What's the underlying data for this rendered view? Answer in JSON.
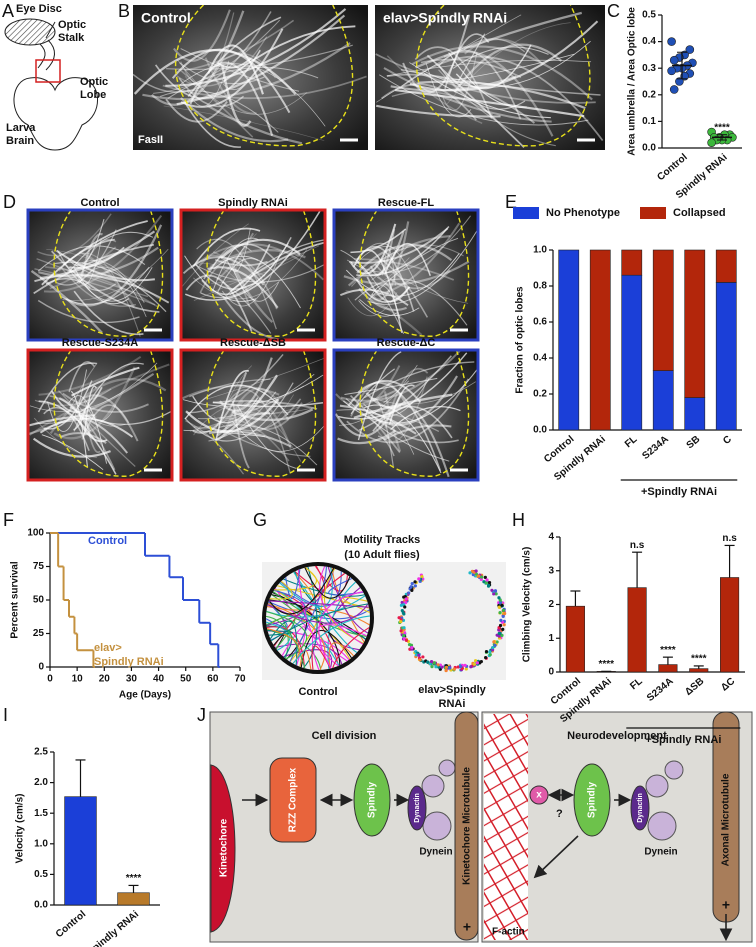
{
  "panel_a": {
    "letter": "A",
    "eye_disc": "Eye Disc",
    "optic_stalk": [
      "Optic",
      "Stalk"
    ],
    "optic_lobe": [
      "Optic",
      "Lobe"
    ],
    "larva_brain": [
      "Larva",
      "Brain"
    ]
  },
  "panel_b": {
    "letter": "B",
    "images": [
      {
        "title": "Control",
        "stain": "FasII"
      },
      {
        "title": "elav>Spindly RNAi"
      }
    ]
  },
  "panel_d": {
    "letter": "D",
    "images": [
      {
        "title": "Control",
        "frame": "#2a3fbf"
      },
      {
        "title": "Spindly RNAi",
        "frame": "#d42020"
      },
      {
        "title": "Rescue-FL",
        "frame": "#2a3fbf"
      },
      {
        "title": "Rescue-S234A",
        "frame": "#d42020"
      },
      {
        "title": "Rescue-ΔSB",
        "frame": "#d42020"
      },
      {
        "title": "Rescue-ΔC",
        "frame": "#2a3fbf"
      }
    ]
  },
  "panel_g": {
    "letter": "G",
    "title": [
      "Motility Tracks",
      "(10 Adult flies)"
    ],
    "control_label": "Control",
    "rnai_label": [
      "elav>Spindly",
      "RNAi"
    ]
  },
  "panel_j": {
    "letter": "J",
    "left": {
      "title": "Cell division",
      "kinetochore": "Kinetochore",
      "rzz": "RZZ Complex",
      "spindly": "Spindly",
      "dynactin": "Dynactin",
      "dynein": "Dynein",
      "microtubule": "Kinetochore Microtubule",
      "plus": "+"
    },
    "right": {
      "title": "Neurodevelopment",
      "x": "x",
      "question": "?",
      "spindly": "Spindly",
      "dynactin": "Dynactin",
      "dynein": "Dynein",
      "microtubule": "Axonal Microtubule",
      "plus": "+",
      "factin": "F-actin"
    }
  },
  "chart_data": [
    {
      "panel": "C",
      "type": "scatter-dot",
      "categories": [
        "Control",
        "Spindly RNAi"
      ],
      "colors": [
        "#1f4fb5",
        "#3cb83c"
      ],
      "values": [
        [
          0.4,
          0.37,
          0.35,
          0.34,
          0.33,
          0.32,
          0.31,
          0.3,
          0.3,
          0.29,
          0.28,
          0.27,
          0.25,
          0.22
        ],
        [
          0.06,
          0.05,
          0.05,
          0.04,
          0.04,
          0.04,
          0.03,
          0.03,
          0.03,
          0.02
        ]
      ],
      "means": [
        0.31,
        0.04
      ],
      "errors": [
        0.05,
        0.01
      ],
      "annotations": [
        null,
        "****"
      ],
      "ylabel": "Area umbrella / Area Optic lobe",
      "ylim": [
        0,
        0.5
      ],
      "yticks": [
        {
          "value": 0,
          "label": "0.0"
        },
        0.1,
        0.2,
        0.3,
        0.4,
        0.5
      ]
    },
    {
      "panel": "E",
      "type": "stacked-bar",
      "categories": [
        "Control",
        "Spindly RNAi",
        "FL",
        "S234A",
        "SB",
        "C"
      ],
      "group_label": "+Spindly RNAi",
      "series": [
        {
          "name": "No Phenotype",
          "color": "#1b3fd8",
          "values": [
            1,
            0,
            0.86,
            0.33,
            0.18,
            0.82
          ]
        },
        {
          "name": "Collapsed",
          "color": "#b3260b",
          "values": [
            0,
            1,
            0.14,
            0.67,
            0.82,
            0.18
          ]
        }
      ],
      "legend": "top",
      "ylabel": "Fraction of optic lobes",
      "ylim": [
        0,
        1
      ],
      "yticks": [
        {
          "value": 0,
          "label": "0.0"
        },
        0.2,
        0.4,
        0.6,
        0.8,
        {
          "value": 1,
          "label": "1.0"
        }
      ]
    },
    {
      "panel": "F",
      "type": "step",
      "xlabel": "Age (Days)",
      "ylabel": "Percent survival",
      "xlim": [
        0,
        70
      ],
      "xticks": [
        0,
        10,
        20,
        30,
        40,
        50,
        60,
        70
      ],
      "ylim": [
        0,
        100
      ],
      "yticks": [
        0,
        25,
        50,
        75,
        100
      ],
      "series": [
        {
          "label": [
            "Control"
          ],
          "color": "#2d4fd6",
          "x": [
            0,
            35,
            44,
            49,
            55,
            59,
            62
          ],
          "values": [
            100,
            83,
            67,
            50,
            33,
            17,
            0
          ]
        },
        {
          "label": [
            "elav>",
            "Spindly RNAi"
          ],
          "color": "#c4913f",
          "x": [
            0,
            3,
            5,
            7,
            9,
            10,
            16
          ],
          "values": [
            100,
            75,
            50,
            37.5,
            25,
            12.5,
            0
          ]
        }
      ]
    },
    {
      "panel": "H",
      "type": "bar-error",
      "categories": [
        "Control",
        "Spindly RNAi",
        "FL",
        "S234A",
        "ΔSB",
        "ΔC"
      ],
      "group_label": "+Spindly RNAi",
      "color": "#b3260b",
      "values": [
        1.95,
        0.02,
        2.5,
        0.22,
        0.1,
        2.8
      ],
      "errors": [
        0.45,
        0,
        1.05,
        0.22,
        0.08,
        0.95
      ],
      "annotations": [
        null,
        "****",
        "n.s",
        "****",
        "****",
        "n.s"
      ],
      "ylabel": "Climbing Velocity (cm/s)",
      "ylim": [
        0,
        4
      ],
      "yticks": [
        0,
        1,
        2,
        3,
        4
      ]
    },
    {
      "panel": "I",
      "type": "bar-error",
      "categories": [
        "Control",
        "Spindly RNAi"
      ],
      "colors": [
        "#1b3fd8",
        "#b87a2a"
      ],
      "values": [
        1.77,
        0.2
      ],
      "errors": [
        0.6,
        0.12
      ],
      "annotations": [
        null,
        "****"
      ],
      "ylabel": "Velocity (cm/s)",
      "ylim": [
        0,
        2.5
      ],
      "yticks": [
        {
          "value": 0,
          "label": "0.0"
        },
        0.5,
        {
          "value": 1,
          "label": "1.0"
        },
        1.5,
        {
          "value": 2,
          "label": "2.0"
        },
        2.5
      ]
    }
  ]
}
